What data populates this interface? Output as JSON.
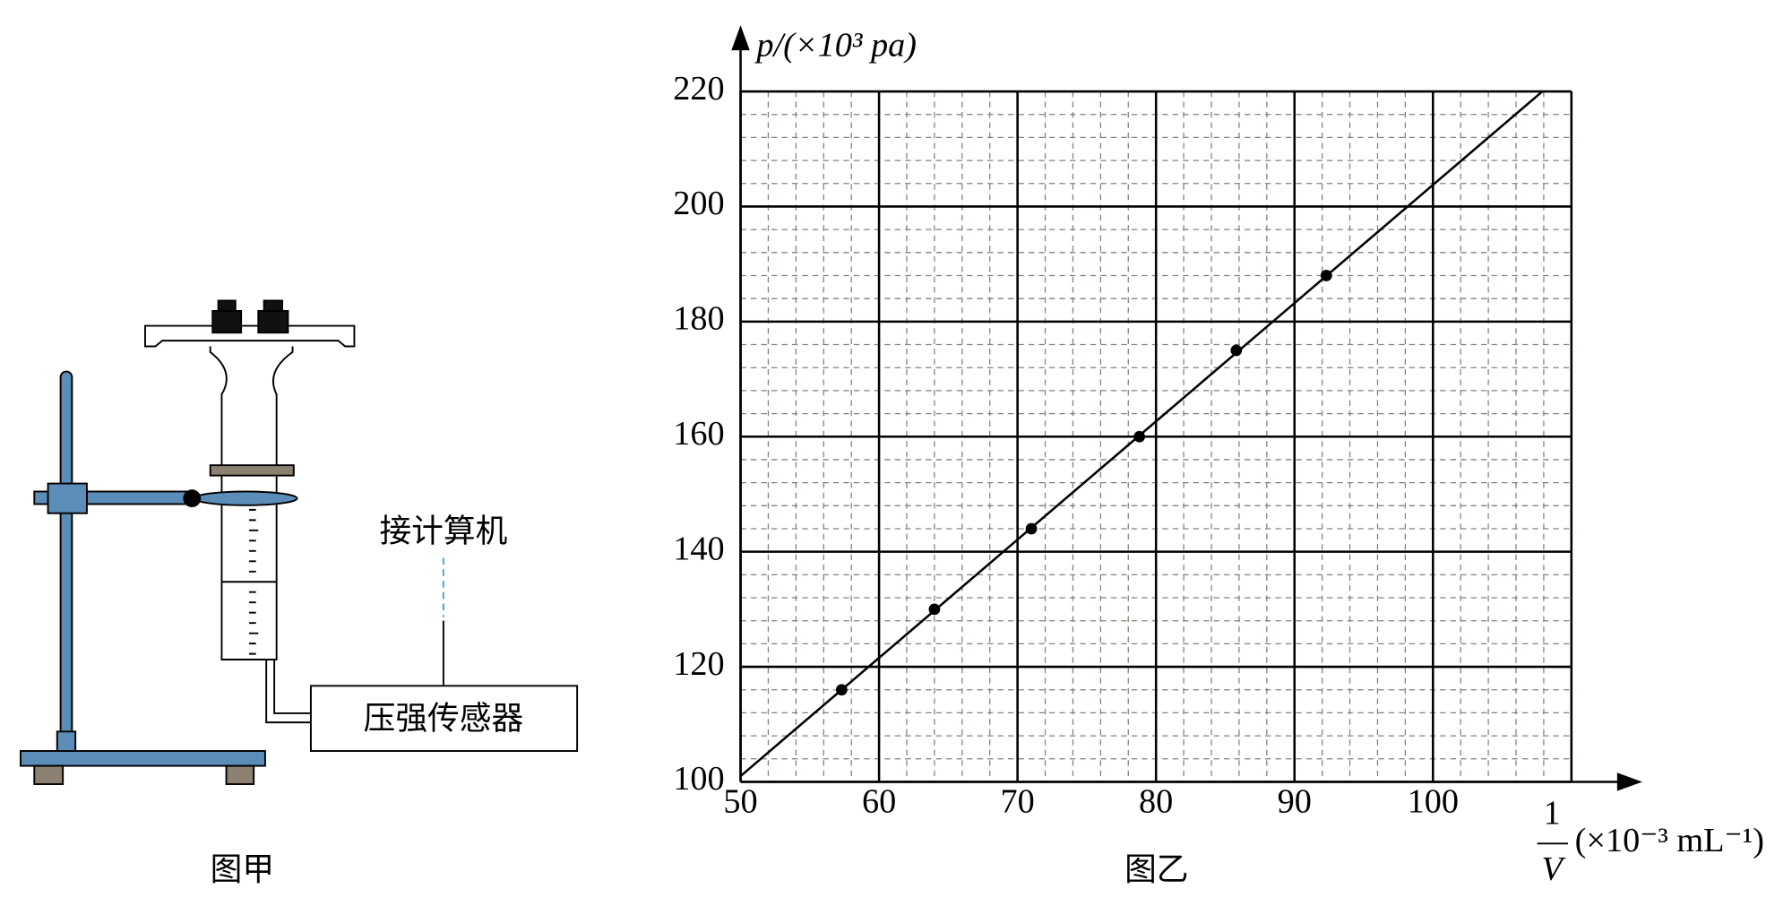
{
  "diagram": {
    "labels": {
      "computer": "接计算机",
      "sensor": "压强传感器",
      "caption": "图甲"
    }
  },
  "chart_data": {
    "type": "scatter",
    "y_label": "p/(×10³ pa)",
    "x_label": {
      "numerator": "1",
      "denominator": "V",
      "unit": "(×10⁻³ mL⁻¹)"
    },
    "caption": "图乙",
    "xlim": [
      50,
      110
    ],
    "ylim": [
      100,
      220
    ],
    "xticks": [
      50,
      60,
      70,
      80,
      90,
      100
    ],
    "yticks": [
      100,
      120,
      140,
      160,
      180,
      200,
      220
    ],
    "grid": true,
    "minor_grid": 5,
    "color": "#000000",
    "points": {
      "x": [
        57.3,
        64,
        71,
        78.8,
        85.8,
        92.3
      ],
      "y": [
        116,
        130,
        144,
        160,
        175,
        188
      ]
    },
    "line": {
      "x": [
        50,
        107.9
      ],
      "y": [
        101,
        220
      ]
    }
  }
}
